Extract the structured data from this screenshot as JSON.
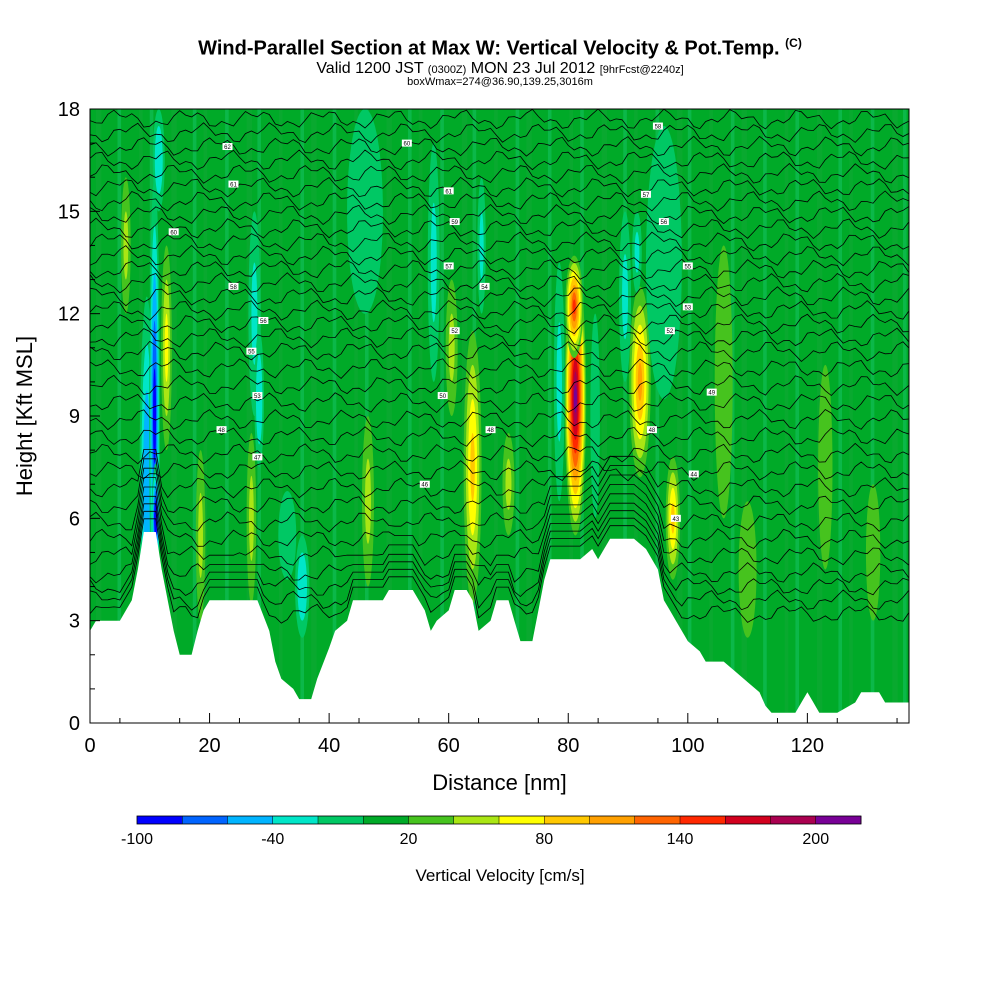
{
  "header": {
    "title_main": "Wind-Parallel Section at Max W: Vertical Velocity & Pot.Temp.",
    "title_mark": "(C)",
    "valid_prefix": "Valid 1200 JST",
    "valid_utc": "(0300Z)",
    "valid_date": "MON 23 Jul 2012",
    "forecast_note": "[9hrFcst@2240z]",
    "box_note": "boxWmax=274@36.90,139.25,3016m"
  },
  "chart_data": {
    "type": "heatmap",
    "xlabel": "Distance [nm]",
    "ylabel": "Height [Kft MSL]",
    "xlim": [
      0,
      137
    ],
    "ylim": [
      0,
      18
    ],
    "x_ticks": [
      0,
      20,
      40,
      60,
      80,
      100,
      120
    ],
    "y_ticks": [
      0,
      3,
      6,
      9,
      12,
      15,
      18
    ],
    "colorbar": {
      "label": "Vertical Velocity [cm/s]",
      "tick_values": [
        -100,
        -40,
        20,
        80,
        140,
        200
      ],
      "tick_labels": [
        "-100",
        "-40",
        "20",
        "80",
        "140",
        "200"
      ],
      "bounds": [
        -100,
        -80,
        -60,
        -40,
        -20,
        0,
        20,
        40,
        60,
        80,
        100,
        120,
        140,
        160,
        180,
        200,
        220
      ],
      "colors": [
        "#0000ff",
        "#0064ff",
        "#00b4ff",
        "#00e6c8",
        "#00c864",
        "#00aa28",
        "#46c31e",
        "#aae614",
        "#ffff00",
        "#ffc800",
        "#ffa000",
        "#ff6400",
        "#ff2800",
        "#d2001e",
        "#aa0050",
        "#780096"
      ]
    },
    "background_value_cm_s": 10,
    "terrain_kft": [
      [
        0,
        2.7
      ],
      [
        1,
        3.0
      ],
      [
        5,
        3.0
      ],
      [
        6,
        3.3
      ],
      [
        7,
        3.6
      ],
      [
        8,
        4.5
      ],
      [
        9,
        5.6
      ],
      [
        11,
        5.6
      ],
      [
        12,
        4.5
      ],
      [
        13,
        3.6
      ],
      [
        14,
        2.7
      ],
      [
        15,
        2.0
      ],
      [
        17,
        2.0
      ],
      [
        18,
        2.7
      ],
      [
        19,
        3.3
      ],
      [
        20,
        3.6
      ],
      [
        28,
        3.6
      ],
      [
        30,
        2.7
      ],
      [
        31,
        1.8
      ],
      [
        32,
        1.3
      ],
      [
        34,
        1.0
      ],
      [
        35,
        0.7
      ],
      [
        37,
        0.7
      ],
      [
        38,
        1.3
      ],
      [
        40,
        2.2
      ],
      [
        41,
        2.7
      ],
      [
        43,
        3.0
      ],
      [
        44,
        3.6
      ],
      [
        49,
        3.6
      ],
      [
        50,
        3.9
      ],
      [
        54,
        3.9
      ],
      [
        56,
        3.3
      ],
      [
        57,
        2.7
      ],
      [
        58,
        3.0
      ],
      [
        60,
        3.3
      ],
      [
        61,
        3.9
      ],
      [
        63,
        3.9
      ],
      [
        64,
        3.6
      ],
      [
        65,
        2.7
      ],
      [
        67,
        3.0
      ],
      [
        68,
        3.6
      ],
      [
        70,
        3.6
      ],
      [
        71,
        3.0
      ],
      [
        72,
        2.4
      ],
      [
        74,
        2.4
      ],
      [
        75,
        3.3
      ],
      [
        76,
        4.2
      ],
      [
        77,
        4.8
      ],
      [
        82,
        4.8
      ],
      [
        84,
        5.1
      ],
      [
        85,
        4.8
      ],
      [
        86,
        5.1
      ],
      [
        87,
        5.4
      ],
      [
        91,
        5.4
      ],
      [
        93,
        5.1
      ],
      [
        95,
        4.5
      ],
      [
        96,
        3.6
      ],
      [
        97,
        3.3
      ],
      [
        98,
        3.0
      ],
      [
        100,
        2.4
      ],
      [
        102,
        2.1
      ],
      [
        103,
        1.8
      ],
      [
        106,
        1.8
      ],
      [
        108,
        1.5
      ],
      [
        110,
        1.2
      ],
      [
        112,
        0.9
      ],
      [
        113,
        0.5
      ],
      [
        114,
        0.3
      ],
      [
        118,
        0.3
      ],
      [
        119,
        0.6
      ],
      [
        120,
        0.9
      ],
      [
        121,
        0.6
      ],
      [
        122,
        0.3
      ],
      [
        125,
        0.3
      ],
      [
        128,
        0.6
      ],
      [
        129,
        0.9
      ],
      [
        132,
        0.9
      ],
      [
        133,
        0.6
      ],
      [
        137,
        0.6
      ]
    ],
    "series": [
      {
        "values": [
          {
            "x": 9.5,
            "y": 7.0,
            "wx": 1.2,
            "wy": 5.5,
            "w": -60
          },
          {
            "x": 10.8,
            "y": 9.0,
            "wx": 0.9,
            "wy": 7.0,
            "w": -85
          },
          {
            "x": 11.0,
            "y": 6.0,
            "wx": 0.7,
            "wy": 1.6,
            "w": -100
          },
          {
            "x": 11.5,
            "y": 16.5,
            "wx": 1.0,
            "wy": 1.5,
            "w": -40
          },
          {
            "x": 12.8,
            "y": 11.0,
            "wx": 0.9,
            "wy": 3.0,
            "w": 60
          },
          {
            "x": 6.0,
            "y": 14.0,
            "wx": 0.8,
            "wy": 2.0,
            "w": 45
          },
          {
            "x": 27.5,
            "y": 12.0,
            "wx": 1.0,
            "wy": 3.0,
            "w": -30
          },
          {
            "x": 28.3,
            "y": 9.5,
            "wx": 0.8,
            "wy": 2.0,
            "w": -40
          },
          {
            "x": 35.5,
            "y": 4.0,
            "wx": 1.2,
            "wy": 1.5,
            "w": -40
          },
          {
            "x": 33.0,
            "y": 5.5,
            "wx": 1.5,
            "wy": 1.3,
            "w": -20
          },
          {
            "x": 27.0,
            "y": 6.0,
            "wx": 0.8,
            "wy": 2.5,
            "w": 50
          },
          {
            "x": 18.5,
            "y": 5.5,
            "wx": 0.8,
            "wy": 2.5,
            "w": 40
          },
          {
            "x": 46.5,
            "y": 6.5,
            "wx": 1.0,
            "wy": 2.5,
            "w": 40
          },
          {
            "x": 57.5,
            "y": 13.5,
            "wx": 1.0,
            "wy": 3.5,
            "w": -25
          },
          {
            "x": 60.5,
            "y": 11.0,
            "wx": 1.0,
            "wy": 2.0,
            "w": 40
          },
          {
            "x": 64.0,
            "y": 7.5,
            "wx": 1.5,
            "wy": 4.0,
            "w": 85
          },
          {
            "x": 65.5,
            "y": 14.0,
            "wx": 0.7,
            "wy": 2.0,
            "w": -30
          },
          {
            "x": 70.0,
            "y": 7.0,
            "wx": 1.0,
            "wy": 1.5,
            "w": 40
          },
          {
            "x": 78.5,
            "y": 10.0,
            "wx": 0.9,
            "wy": 3.5,
            "w": -30
          },
          {
            "x": 81.2,
            "y": 9.5,
            "wx": 1.8,
            "wy": 4.0,
            "w": 210
          },
          {
            "x": 81.0,
            "y": 12.2,
            "wx": 1.5,
            "wy": 1.5,
            "w": 150
          },
          {
            "x": 84.5,
            "y": 9.0,
            "wx": 0.8,
            "wy": 3.0,
            "w": -20
          },
          {
            "x": 89.5,
            "y": 12.5,
            "wx": 1.0,
            "wy": 2.5,
            "w": -25
          },
          {
            "x": 92.0,
            "y": 10.0,
            "wx": 1.8,
            "wy": 2.8,
            "w": 105
          },
          {
            "x": 91.5,
            "y": 13.8,
            "wx": 0.8,
            "wy": 1.2,
            "w": -30
          },
          {
            "x": 97.5,
            "y": 6.0,
            "wx": 1.2,
            "wy": 1.8,
            "w": 85
          },
          {
            "x": 106.0,
            "y": 10.0,
            "wx": 1.5,
            "wy": 4.0,
            "w": 35
          },
          {
            "x": 110.0,
            "y": 4.5,
            "wx": 1.5,
            "wy": 2.0,
            "w": 35
          },
          {
            "x": 123.0,
            "y": 7.5,
            "wx": 1.2,
            "wy": 3.0,
            "w": 35
          },
          {
            "x": 131.0,
            "y": 5.0,
            "wx": 1.2,
            "wy": 2.0,
            "w": 35
          },
          {
            "x": 96.0,
            "y": 13.5,
            "wx": 3.0,
            "wy": 4.0,
            "w": -5
          },
          {
            "x": 46.0,
            "y": 15.0,
            "wx": 3.0,
            "wy": 3.0,
            "w": -5
          }
        ]
      }
    ],
    "theta_contours": {
      "base_values": [
        3.2,
        3.6,
        4.0,
        4.4,
        4.9,
        5.4,
        5.9,
        6.4,
        6.9,
        7.4,
        7.9,
        8.4,
        8.9,
        9.4,
        9.9,
        10.4,
        10.9,
        11.3,
        11.7,
        12.1,
        12.5,
        12.9,
        13.3,
        13.7,
        14.1,
        14.5,
        14.9,
        15.3,
        15.7,
        16.1,
        16.5,
        16.9,
        17.3,
        17.7
      ],
      "labels": [
        {
          "text": "62",
          "x": 23,
          "y": 16.9
        },
        {
          "text": "60",
          "x": 53,
          "y": 17.0
        },
        {
          "text": "58",
          "x": 95,
          "y": 17.5
        },
        {
          "text": "61",
          "x": 24,
          "y": 15.8
        },
        {
          "text": "61",
          "x": 60,
          "y": 15.6
        },
        {
          "text": "57",
          "x": 93,
          "y": 15.5
        },
        {
          "text": "60",
          "x": 14,
          "y": 14.4
        },
        {
          "text": "59",
          "x": 61,
          "y": 14.7
        },
        {
          "text": "56",
          "x": 96,
          "y": 14.7
        },
        {
          "text": "58",
          "x": 24,
          "y": 12.8
        },
        {
          "text": "57",
          "x": 60,
          "y": 13.4
        },
        {
          "text": "55",
          "x": 100,
          "y": 13.4
        },
        {
          "text": "56",
          "x": 29,
          "y": 11.8
        },
        {
          "text": "54",
          "x": 66,
          "y": 12.8
        },
        {
          "text": "53",
          "x": 100,
          "y": 12.2
        },
        {
          "text": "55",
          "x": 27,
          "y": 10.9
        },
        {
          "text": "52",
          "x": 61,
          "y": 11.5
        },
        {
          "text": "52",
          "x": 97,
          "y": 11.5
        },
        {
          "text": "53",
          "x": 28,
          "y": 9.6
        },
        {
          "text": "50",
          "x": 59,
          "y": 9.6
        },
        {
          "text": "49",
          "x": 104,
          "y": 9.7
        },
        {
          "text": "48",
          "x": 22,
          "y": 8.6
        },
        {
          "text": "48",
          "x": 67,
          "y": 8.6
        },
        {
          "text": "48",
          "x": 94,
          "y": 8.6
        },
        {
          "text": "47",
          "x": 28,
          "y": 7.8
        },
        {
          "text": "46",
          "x": 56,
          "y": 7.0
        },
        {
          "text": "44",
          "x": 101,
          "y": 7.3
        },
        {
          "text": "43",
          "x": 98,
          "y": 6.0
        }
      ]
    }
  }
}
